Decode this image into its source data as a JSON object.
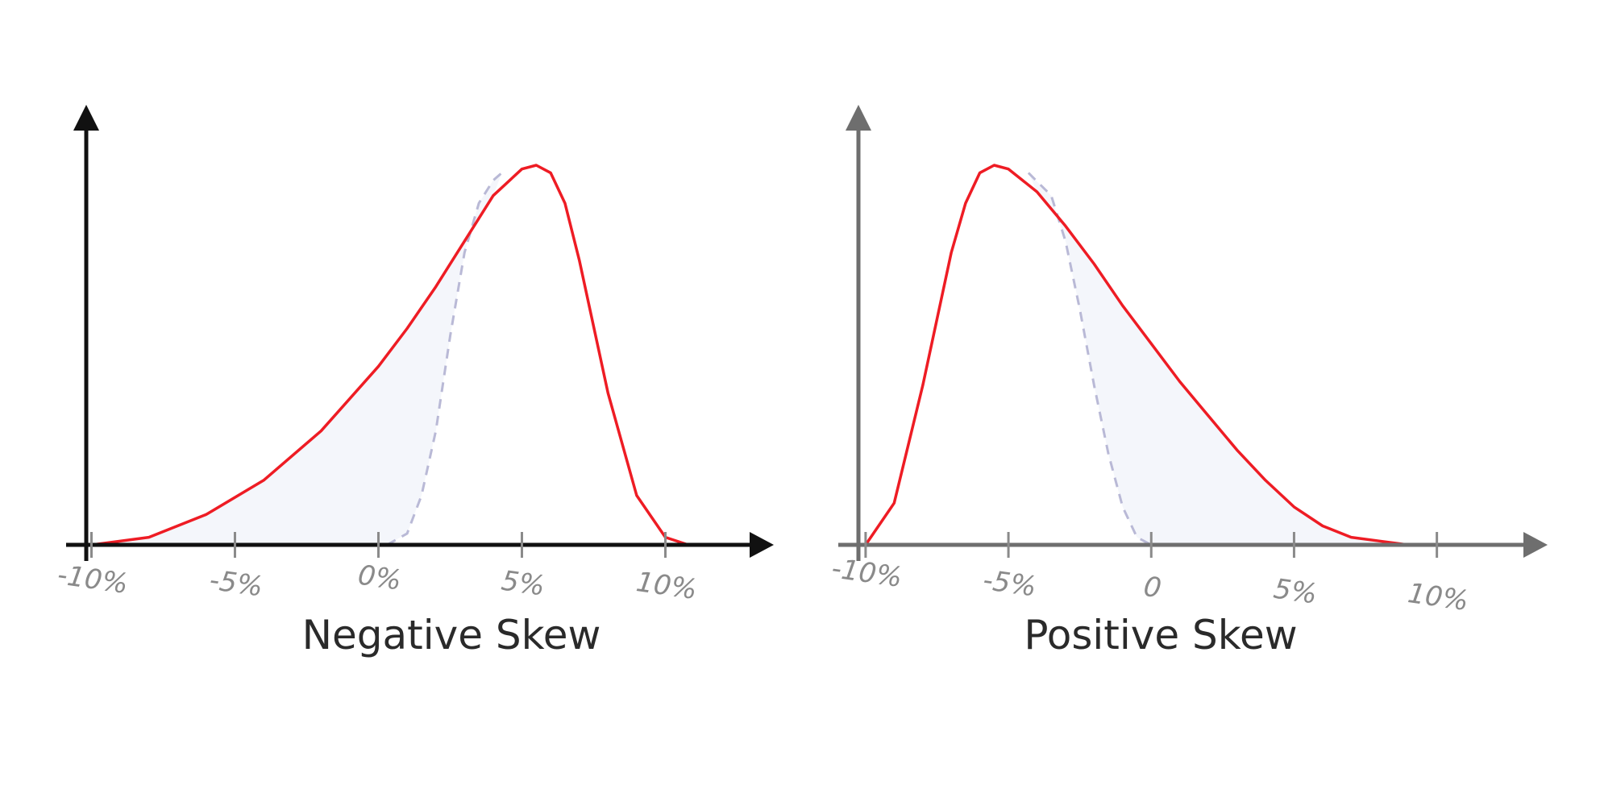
{
  "colors": {
    "curve": "#ee1c24",
    "normal_dashed": "#b9b9d6",
    "fill": "#f4f6fb",
    "axis_left": "#111111",
    "axis_right": "#6e6e6e",
    "tick_text": "#8a8a8a",
    "title_text": "#2a2a2a"
  },
  "chart_data": [
    {
      "type": "line",
      "title": "Negative Skew",
      "xlabel": "",
      "ylabel": "",
      "grid": false,
      "tick_values": [
        -10,
        -5,
        0,
        5,
        10
      ],
      "tick_labels": [
        "-10%",
        "-5%",
        "0%",
        "5%",
        "10%"
      ],
      "xlim": [
        -10.8,
        14.2
      ],
      "ylim": [
        0,
        1
      ],
      "series": [
        {
          "role": "skewed_curve",
          "x": [
            -10,
            -8,
            -6,
            -4,
            -2,
            0,
            1,
            2,
            3,
            4,
            5,
            5.5,
            6,
            6.5,
            7,
            8,
            9,
            10,
            10.8
          ],
          "y": [
            0,
            0.02,
            0.08,
            0.17,
            0.3,
            0.47,
            0.57,
            0.68,
            0.8,
            0.92,
            0.99,
            1.0,
            0.98,
            0.9,
            0.75,
            0.4,
            0.13,
            0.02,
            0.0
          ]
        },
        {
          "role": "normal_curve_dashed",
          "x": [
            0.3,
            1,
            1.5,
            2,
            2.5,
            3,
            3.5,
            4,
            4.3
          ],
          "y": [
            0.0,
            0.03,
            0.13,
            0.3,
            0.55,
            0.77,
            0.9,
            0.96,
            0.98
          ]
        }
      ]
    },
    {
      "type": "line",
      "title": "Positive Skew",
      "xlabel": "",
      "ylabel": "",
      "grid": false,
      "tick_values": [
        -10,
        -5,
        0,
        5,
        10
      ],
      "tick_labels": [
        "-10%",
        "-5%",
        "0",
        "5%",
        "10%"
      ],
      "xlim": [
        -10.9,
        14.3
      ],
      "ylim": [
        0,
        1
      ],
      "series": [
        {
          "role": "skewed_curve",
          "x": [
            -10,
            -9,
            -8,
            -7,
            -6.5,
            -6,
            -5.5,
            -5,
            -4,
            -3,
            -2,
            -1,
            0,
            1,
            2,
            3,
            4,
            5,
            6,
            7,
            8,
            9,
            10
          ],
          "y": [
            0.0,
            0.11,
            0.42,
            0.77,
            0.9,
            0.98,
            1.0,
            0.99,
            0.93,
            0.84,
            0.74,
            0.63,
            0.53,
            0.43,
            0.34,
            0.25,
            0.17,
            0.1,
            0.05,
            0.02,
            0.01,
            0.0,
            0.0
          ]
        },
        {
          "role": "normal_curve_dashed",
          "x": [
            -4.3,
            -3.5,
            -3,
            -2.5,
            -2,
            -1.5,
            -1,
            -0.5,
            0
          ],
          "y": [
            0.98,
            0.92,
            0.8,
            0.62,
            0.42,
            0.24,
            0.1,
            0.02,
            0.0
          ]
        }
      ]
    }
  ]
}
